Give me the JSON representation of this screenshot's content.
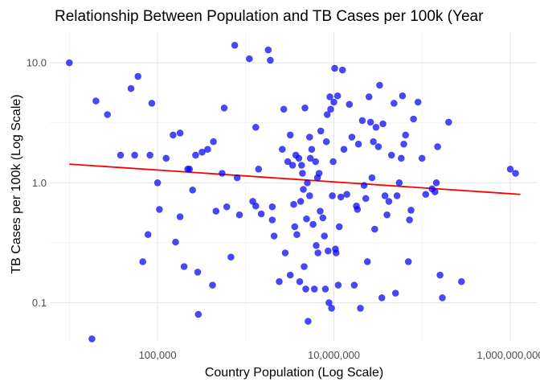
{
  "chart_data": {
    "type": "scatter",
    "title": "Relationship Between Population and TB Cases per 100k (Year",
    "xlabel": "Country Population (Log Scale)",
    "ylabel": "TB Cases per 100k (Log Scale)",
    "x_scale": "log",
    "y_scale": "log",
    "xlim": [
      6000,
      2000000000
    ],
    "ylim": [
      0.048,
      18
    ],
    "x_ticks": [
      {
        "value": 100000,
        "label": "100,000"
      },
      {
        "value": 10000000,
        "label": "10,000,000"
      },
      {
        "value": 1000000000,
        "label": "1,000,000,000"
      }
    ],
    "y_ticks": [
      {
        "value": 0.1,
        "label": "0.1"
      },
      {
        "value": 1,
        "label": "1.0"
      },
      {
        "value": 10,
        "label": "10.0"
      }
    ],
    "grid": true,
    "point_color": "#0000ff",
    "trend_line": {
      "color": "#ff0000",
      "x": [
        10000,
        1300000000
      ],
      "y": [
        1.43,
        0.8
      ]
    },
    "points": [
      [
        10000,
        10.0
      ],
      [
        18000,
        0.05
      ],
      [
        20000,
        4.8
      ],
      [
        27000,
        3.7
      ],
      [
        38000,
        1.7
      ],
      [
        50000,
        6.1
      ],
      [
        55000,
        1.7
      ],
      [
        60000,
        7.7
      ],
      [
        68000,
        0.22
      ],
      [
        78000,
        0.37
      ],
      [
        82000,
        1.7
      ],
      [
        86000,
        4.6
      ],
      [
        100000,
        1.0
      ],
      [
        105000,
        0.6
      ],
      [
        125000,
        1.6
      ],
      [
        150000,
        2.5
      ],
      [
        160000,
        0.32
      ],
      [
        180000,
        2.6
      ],
      [
        180000,
        0.52
      ],
      [
        200000,
        0.2
      ],
      [
        220000,
        1.3
      ],
      [
        230000,
        1.3
      ],
      [
        250000,
        0.87
      ],
      [
        270000,
        1.7
      ],
      [
        285000,
        0.18
      ],
      [
        290000,
        0.08
      ],
      [
        320000,
        1.8
      ],
      [
        370000,
        1.9
      ],
      [
        420000,
        0.14
      ],
      [
        430000,
        2.2
      ],
      [
        460000,
        0.58
      ],
      [
        540000,
        1.2
      ],
      [
        570000,
        4.2
      ],
      [
        610000,
        0.63
      ],
      [
        680000,
        0.24
      ],
      [
        750000,
        14.0
      ],
      [
        800000,
        1.1
      ],
      [
        850000,
        0.54
      ],
      [
        1100000,
        10.8
      ],
      [
        1200000,
        0.7
      ],
      [
        1300000,
        2.9
      ],
      [
        1300000,
        0.64
      ],
      [
        1400000,
        1.3
      ],
      [
        1500000,
        0.55
      ],
      [
        1800000,
        12.8
      ],
      [
        1900000,
        10.5
      ],
      [
        2000000,
        0.63
      ],
      [
        2000000,
        0.49
      ],
      [
        2100000,
        0.36
      ],
      [
        2400000,
        0.15
      ],
      [
        2600000,
        1.9
      ],
      [
        2700000,
        4.1
      ],
      [
        2800000,
        0.26
      ],
      [
        3000000,
        1.5
      ],
      [
        3200000,
        2.5
      ],
      [
        3200000,
        0.17
      ],
      [
        3400000,
        1.4
      ],
      [
        3500000,
        0.66
      ],
      [
        3600000,
        0.43
      ],
      [
        3700000,
        1.7
      ],
      [
        3800000,
        0.37
      ],
      [
        4000000,
        1.6
      ],
      [
        4100000,
        0.15
      ],
      [
        4200000,
        0.7
      ],
      [
        4300000,
        1.4
      ],
      [
        4400000,
        1.2
      ],
      [
        4500000,
        0.88
      ],
      [
        4600000,
        0.2
      ],
      [
        4700000,
        4.2
      ],
      [
        4800000,
        0.13
      ],
      [
        4900000,
        0.5
      ],
      [
        5000000,
        1.0
      ],
      [
        5100000,
        0.07
      ],
      [
        5300000,
        2.4
      ],
      [
        5300000,
        0.78
      ],
      [
        5400000,
        1.6
      ],
      [
        5600000,
        1.9
      ],
      [
        5800000,
        0.45
      ],
      [
        6000000,
        0.13
      ],
      [
        6200000,
        1.5
      ],
      [
        6300000,
        0.3
      ],
      [
        6500000,
        1.1
      ],
      [
        6600000,
        0.26
      ],
      [
        6800000,
        1.2
      ],
      [
        7000000,
        0.58
      ],
      [
        7100000,
        2.7
      ],
      [
        7500000,
        0.51
      ],
      [
        7800000,
        0.36
      ],
      [
        8000000,
        0.13
      ],
      [
        8200000,
        2.2
      ],
      [
        8400000,
        3.7
      ],
      [
        8600000,
        0.27
      ],
      [
        8800000,
        0.1
      ],
      [
        9000000,
        5.2
      ],
      [
        9200000,
        4.1
      ],
      [
        9400000,
        0.09
      ],
      [
        9600000,
        0.78
      ],
      [
        9800000,
        1.5
      ],
      [
        10000000,
        4.7
      ],
      [
        10200000,
        9.0
      ],
      [
        10400000,
        0.28
      ],
      [
        10600000,
        0.26
      ],
      [
        11000000,
        5.3
      ],
      [
        11200000,
        0.14
      ],
      [
        11500000,
        0.43
      ],
      [
        12000000,
        0.76
      ],
      [
        12500000,
        8.7
      ],
      [
        13000000,
        1.9
      ],
      [
        14000000,
        0.8
      ],
      [
        15000000,
        4.5
      ],
      [
        16000000,
        2.4
      ],
      [
        17000000,
        0.14
      ],
      [
        18000000,
        0.64
      ],
      [
        18500000,
        0.6
      ],
      [
        19000000,
        2.1
      ],
      [
        20000000,
        0.09
      ],
      [
        21000000,
        3.3
      ],
      [
        22000000,
        0.95
      ],
      [
        23000000,
        0.74
      ],
      [
        24000000,
        0.22
      ],
      [
        25000000,
        5.2
      ],
      [
        26000000,
        3.2
      ],
      [
        27000000,
        1.1
      ],
      [
        28000000,
        2.2
      ],
      [
        29000000,
        0.41
      ],
      [
        30000000,
        2.9
      ],
      [
        32000000,
        2.0
      ],
      [
        33000000,
        6.5
      ],
      [
        35000000,
        0.11
      ],
      [
        36000000,
        3.1
      ],
      [
        38000000,
        0.78
      ],
      [
        40000000,
        0.54
      ],
      [
        42000000,
        0.7
      ],
      [
        45000000,
        1.7
      ],
      [
        48000000,
        4.6
      ],
      [
        50000000,
        0.12
      ],
      [
        52000000,
        0.78
      ],
      [
        55000000,
        1.0
      ],
      [
        58000000,
        1.6
      ],
      [
        60000000,
        5.3
      ],
      [
        62000000,
        2.1
      ],
      [
        65000000,
        2.5
      ],
      [
        70000000,
        0.22
      ],
      [
        72000000,
        0.49
      ],
      [
        75000000,
        0.59
      ],
      [
        80000000,
        3.4
      ],
      [
        90000000,
        4.7
      ],
      [
        100000000,
        1.6
      ],
      [
        110000000,
        0.8
      ],
      [
        130000000,
        0.89
      ],
      [
        140000000,
        0.84
      ],
      [
        145000000,
        1.0
      ],
      [
        150000000,
        2.0
      ],
      [
        160000000,
        0.17
      ],
      [
        170000000,
        0.11
      ],
      [
        200000000,
        3.2
      ],
      [
        280000000,
        0.15
      ],
      [
        1000000000,
        1.3
      ],
      [
        1150000000,
        1.2
      ]
    ]
  }
}
